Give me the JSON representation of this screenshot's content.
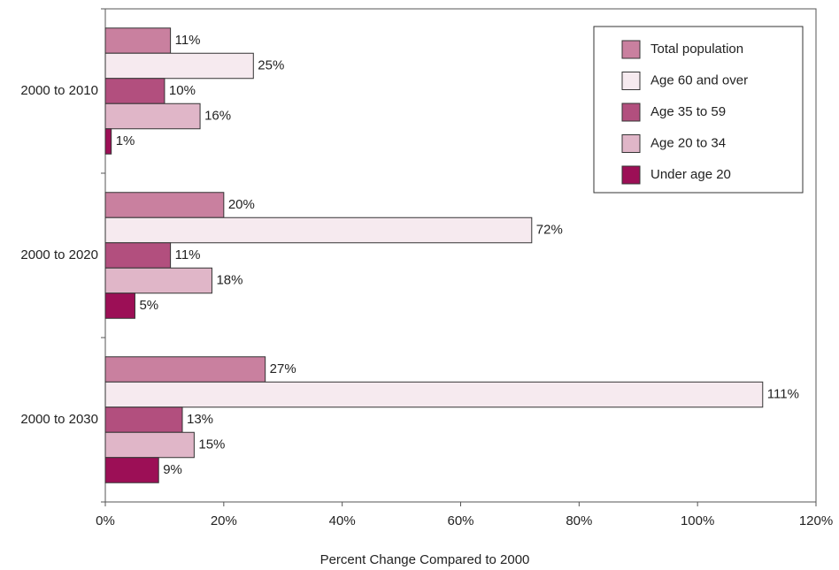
{
  "chart_data": {
    "type": "bar",
    "orientation": "horizontal",
    "x_label": "Percent Change Compared to 2000",
    "categories": [
      "2000 to 2010",
      "2000 to 2020",
      "2000 to 2030"
    ],
    "series": [
      {
        "name": "Total population",
        "color": "#c9809f",
        "values": [
          11,
          20,
          27
        ],
        "value_labels": [
          "11%",
          "20%",
          "27%"
        ]
      },
      {
        "name": "Age 60 and over",
        "color": "#f6eaef",
        "values": [
          25,
          72,
          111
        ],
        "value_labels": [
          "25%",
          "72%",
          "111%"
        ]
      },
      {
        "name": "Age 35 to 59",
        "color": "#b24f7e",
        "values": [
          10,
          11,
          13
        ],
        "value_labels": [
          "10%",
          "11%",
          "13%"
        ]
      },
      {
        "name": "Age 20 to 34",
        "color": "#e0b6c8",
        "values": [
          16,
          18,
          15
        ],
        "value_labels": [
          "16%",
          "18%",
          "15%"
        ]
      },
      {
        "name": "Under age 20",
        "color": "#9c0f56",
        "values": [
          1,
          5,
          9
        ],
        "value_labels": [
          "1%",
          "5%",
          "9%"
        ]
      }
    ],
    "xlim": [
      0,
      120
    ],
    "xticks": [
      {
        "value": 0,
        "label": "0%"
      },
      {
        "value": 20,
        "label": "20%"
      },
      {
        "value": 40,
        "label": "40%"
      },
      {
        "value": 60,
        "label": "60%"
      },
      {
        "value": 80,
        "label": "80%"
      },
      {
        "value": 100,
        "label": "100%"
      },
      {
        "value": 120,
        "label": "120%"
      }
    ],
    "legend": "upper right"
  }
}
